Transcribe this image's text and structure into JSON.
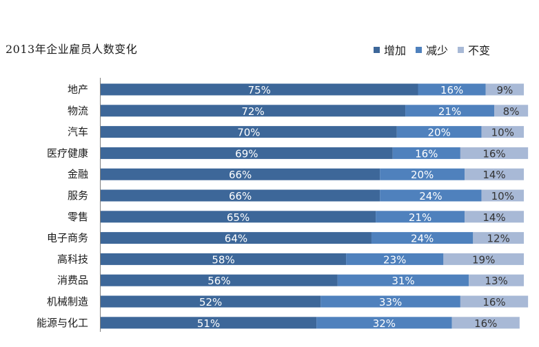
{
  "chart_data": {
    "type": "bar",
    "orientation": "horizontal-stacked-100",
    "title": "2013年企业雇员人数变化",
    "categories": [
      "地产",
      "物流",
      "汽车",
      "医疗健康",
      "金融",
      "服务",
      "零售",
      "电子商务",
      "高科技",
      "消费品",
      "机械制造",
      "能源与化工"
    ],
    "series": [
      {
        "name": "增加",
        "color": "#3d6799",
        "label_color": "#ffffff",
        "values": [
          75,
          72,
          70,
          69,
          66,
          66,
          65,
          64,
          58,
          56,
          52,
          51
        ]
      },
      {
        "name": "减少",
        "color": "#4f81bd",
        "label_color": "#ffffff",
        "values": [
          16,
          21,
          20,
          16,
          20,
          24,
          21,
          24,
          23,
          31,
          33,
          32
        ]
      },
      {
        "name": "不变",
        "color": "#a8b9d6",
        "label_color": "#333333",
        "values": [
          9,
          8,
          10,
          16,
          14,
          10,
          14,
          12,
          19,
          13,
          16,
          16
        ]
      }
    ],
    "value_suffix": "%",
    "xlim": [
      0,
      100
    ],
    "legend": "top-right",
    "grid": false
  }
}
